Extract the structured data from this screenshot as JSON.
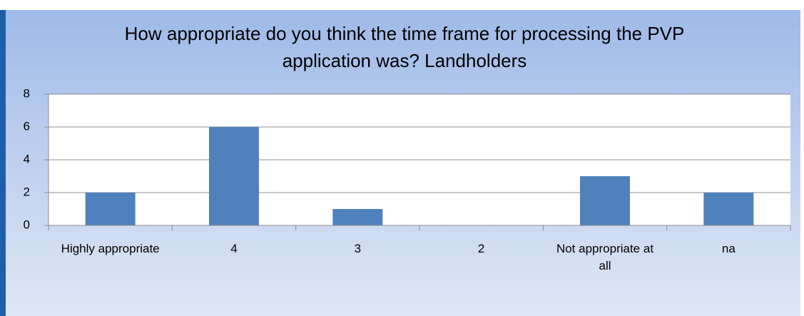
{
  "chart_data": {
    "type": "bar",
    "title": "How appropriate do you think the time frame for processing the PVP application was? Landholders",
    "categories": [
      "Highly appropriate",
      "4",
      "3",
      "2",
      "Not appropriate at all",
      "na"
    ],
    "values": [
      2,
      6,
      1,
      0,
      3,
      2
    ],
    "color": "#4f81bd",
    "ylim": [
      0,
      8
    ],
    "yticks": [
      0,
      2,
      4,
      6,
      8
    ],
    "grid": true
  }
}
